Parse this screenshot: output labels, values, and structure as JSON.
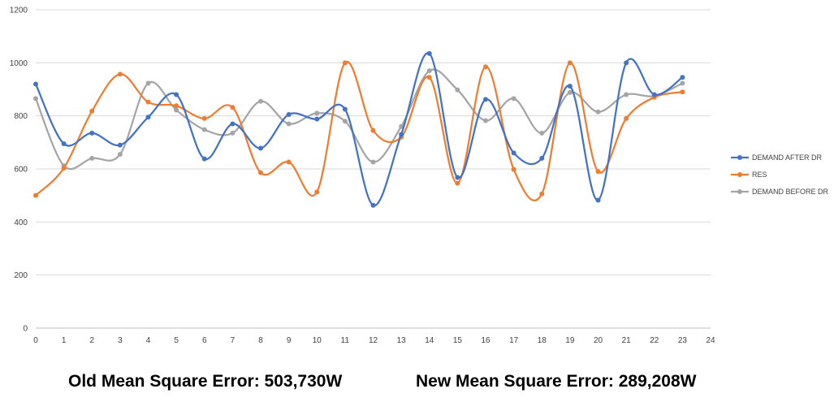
{
  "chart_data": {
    "type": "line",
    "x": [
      0,
      1,
      2,
      3,
      4,
      5,
      6,
      7,
      8,
      9,
      10,
      11,
      12,
      13,
      14,
      15,
      16,
      17,
      18,
      19,
      20,
      21,
      22,
      23
    ],
    "xlim": [
      0,
      24
    ],
    "x_ticks": [
      "0",
      "1",
      "2",
      "3",
      "4",
      "5",
      "6",
      "7",
      "8",
      "9",
      "10",
      "11",
      "12",
      "13",
      "14",
      "15",
      "16",
      "17",
      "18",
      "19",
      "20",
      "21",
      "22",
      "23",
      "24"
    ],
    "ylim": [
      0,
      1200
    ],
    "y_ticks": [
      "0",
      "200",
      "400",
      "600",
      "800",
      "1000",
      "1200"
    ],
    "grid": "horizontal",
    "legend_position": "right",
    "smooth": true,
    "series": [
      {
        "name": "DEMAND AFTER DR",
        "color": "#4472C4",
        "values": [
          920,
          695,
          735,
          690,
          795,
          880,
          638,
          770,
          678,
          805,
          788,
          825,
          463,
          730,
          1035,
          568,
          862,
          660,
          640,
          912,
          482,
          1000,
          880,
          945
        ]
      },
      {
        "name": "RES",
        "color": "#ED7D31",
        "values": [
          500,
          603,
          818,
          957,
          852,
          838,
          790,
          832,
          586,
          626,
          513,
          1000,
          745,
          720,
          945,
          546,
          985,
          598,
          506,
          1000,
          590,
          790,
          870,
          890
        ]
      },
      {
        "name": "DEMAND BEFORE DR",
        "color": "#A5A5A5",
        "values": [
          865,
          612,
          640,
          655,
          923,
          822,
          748,
          735,
          855,
          770,
          810,
          780,
          626,
          760,
          970,
          898,
          782,
          865,
          735,
          888,
          815,
          880,
          875,
          923
        ]
      }
    ]
  },
  "footer": {
    "old_mse": "Old Mean Square Error: 503,730W",
    "new_mse": "New Mean Square Error: 289,208W"
  }
}
